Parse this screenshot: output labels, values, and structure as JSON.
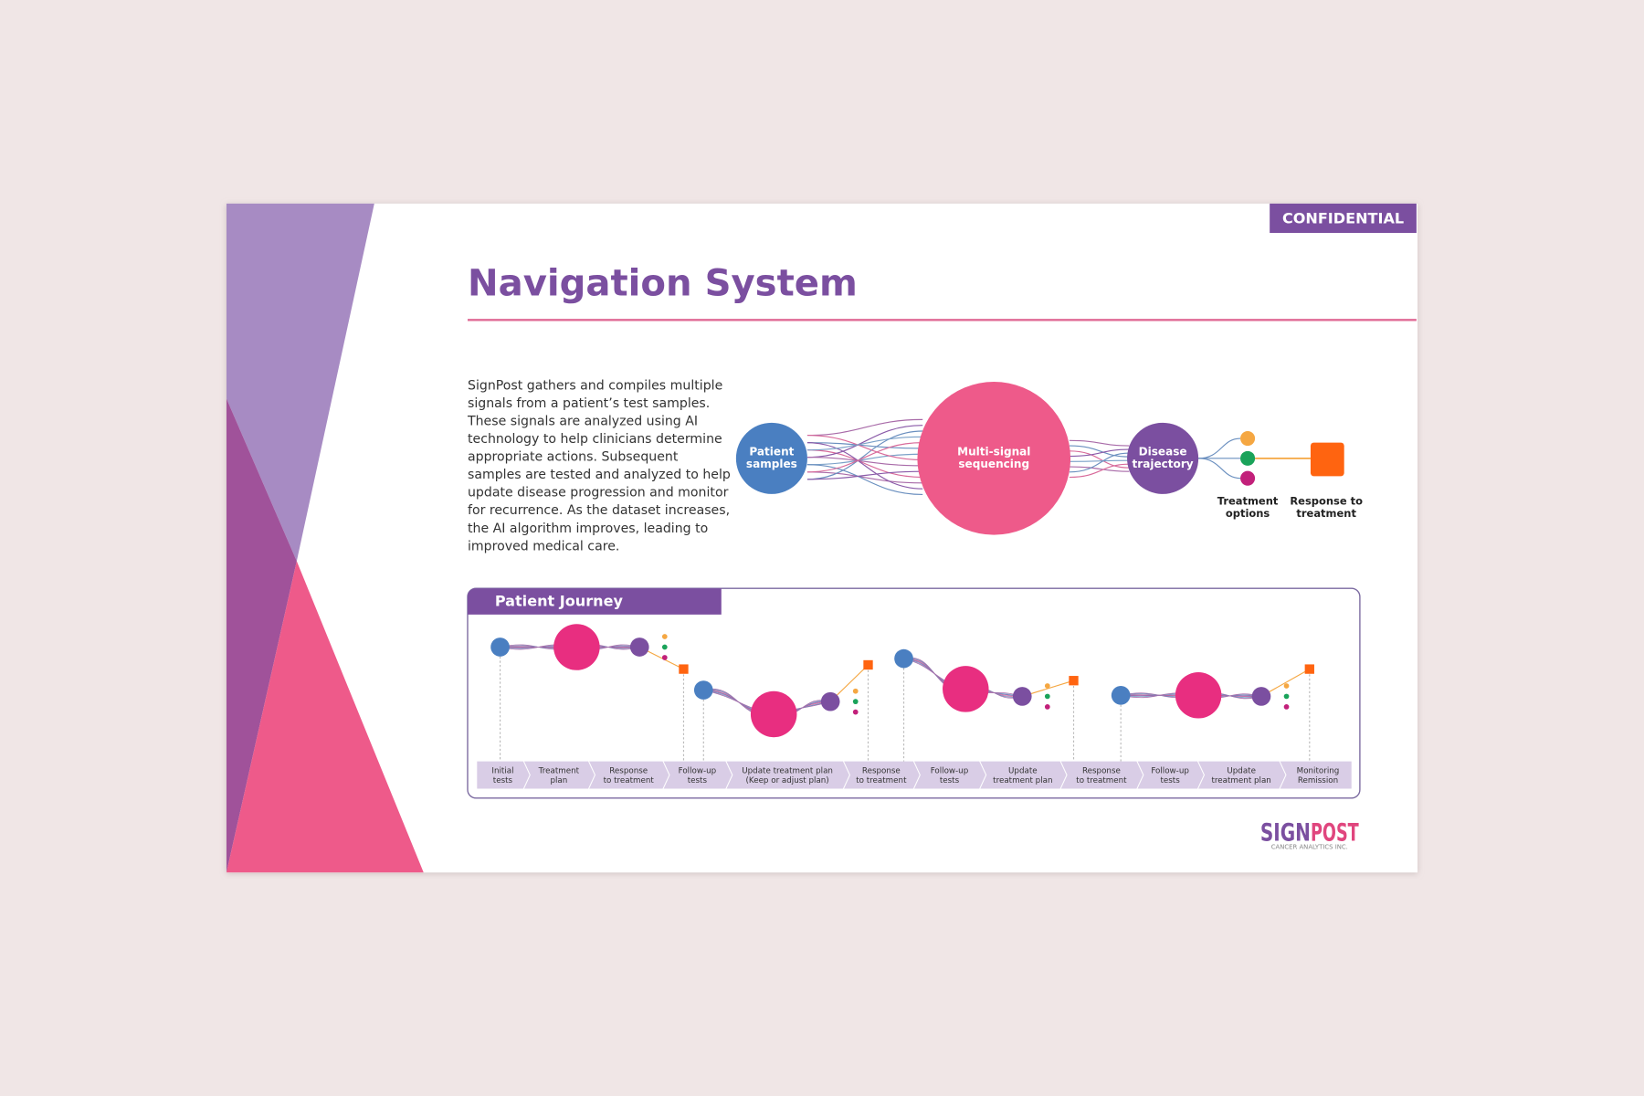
{
  "badge": "CONFIDENTIAL",
  "title": "Navigation System",
  "description": [
    "SignPost gathers and compiles multiple",
    "signals from a patient’s test samples.",
    "These signals are analyzed using AI",
    "technology to help clinicians determine",
    "appropriate actions. Subsequent",
    "samples are tested and analyzed to help",
    "update disease progression and monitor",
    "for recurrence. As the dataset increases,",
    "the AI algorithm improves, leading to",
    "improved medical care."
  ],
  "diagram": {
    "nodes": [
      {
        "label": [
          "Patient",
          "samples"
        ]
      },
      {
        "label": [
          "Multi-signal",
          "sequencing"
        ]
      },
      {
        "label": [
          "Disease",
          "trajectory"
        ]
      },
      {
        "label": [
          "Treatment",
          "options"
        ]
      },
      {
        "label": [
          "Response to",
          "treatment"
        ]
      }
    ]
  },
  "journey": {
    "title": "Patient Journey",
    "steps": [
      [
        "Initial",
        "tests"
      ],
      [
        "Treatment",
        "plan"
      ],
      [
        "Response",
        "to treatment"
      ],
      [
        "Follow-up",
        "tests"
      ],
      [
        "Update treatment plan",
        "(Keep or adjust plan)"
      ],
      [
        "Response",
        "to treatment"
      ],
      [
        "Follow-up",
        "tests"
      ],
      [
        "Update",
        "treatment plan"
      ],
      [
        "Response",
        "to treatment"
      ],
      [
        "Follow-up",
        "tests"
      ],
      [
        "Update",
        "treatment plan"
      ],
      [
        "Monitoring",
        "Remission"
      ]
    ]
  },
  "logo": {
    "sign": "SIGN",
    "post": "POST",
    "tagline": "CANCER ANALYTICS INC."
  }
}
